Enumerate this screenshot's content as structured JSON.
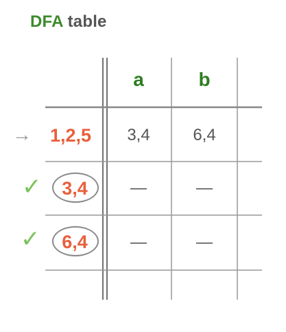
{
  "title": {
    "part1": "DFA",
    "part2": "table"
  },
  "columns": [
    "a",
    "b"
  ],
  "rows": [
    {
      "state": "1,2,5",
      "start": true,
      "marked": false,
      "a": "3,4",
      "b": "6,4"
    },
    {
      "state": "3,4",
      "start": false,
      "marked": true,
      "a": "—",
      "b": "—"
    },
    {
      "state": "6,4",
      "start": false,
      "marked": true,
      "a": "—",
      "b": "—"
    }
  ],
  "glyphs": {
    "start_arrow": "→",
    "check": "✓"
  },
  "colors": {
    "title_green": "#3e8a2f",
    "header_green": "#2f7d22",
    "state_orange": "#e8603c",
    "check_green": "#7ac25a",
    "grid_gray": "#888888"
  }
}
